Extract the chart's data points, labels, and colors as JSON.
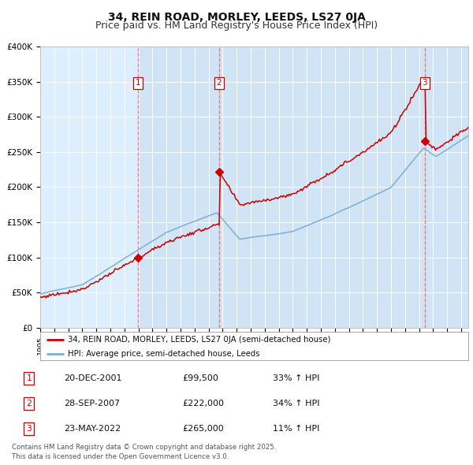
{
  "title": "34, REIN ROAD, MORLEY, LEEDS, LS27 0JA",
  "subtitle": "Price paid vs. HM Land Registry's House Price Index (HPI)",
  "ylim": [
    0,
    400000
  ],
  "yticks": [
    0,
    50000,
    100000,
    150000,
    200000,
    250000,
    300000,
    350000,
    400000
  ],
  "ytick_labels": [
    "£0",
    "£50K",
    "£100K",
    "£150K",
    "£200K",
    "£250K",
    "£300K",
    "£350K",
    "£400K"
  ],
  "xlim_start": 1995.0,
  "xlim_end": 2025.5,
  "hpi_color": "#7bafd4",
  "property_color": "#cc0000",
  "vline_color": "#ff6666",
  "bg_color": "#ddeeff",
  "grid_color": "#ffffff",
  "purchase_dates": [
    2001.97,
    2007.74,
    2022.39
  ],
  "purchase_prices": [
    99500,
    222000,
    265000
  ],
  "purchase_labels": [
    "1",
    "2",
    "3"
  ],
  "legend_property": "34, REIN ROAD, MORLEY, LEEDS, LS27 0JA (semi-detached house)",
  "legend_hpi": "HPI: Average price, semi-detached house, Leeds",
  "table_data": [
    [
      "1",
      "20-DEC-2001",
      "£99,500",
      "33% ↑ HPI"
    ],
    [
      "2",
      "28-SEP-2007",
      "£222,000",
      "34% ↑ HPI"
    ],
    [
      "3",
      "23-MAY-2022",
      "£265,000",
      "11% ↑ HPI"
    ]
  ],
  "footer": "Contains HM Land Registry data © Crown copyright and database right 2025.\nThis data is licensed under the Open Government Licence v3.0.",
  "title_fontsize": 10,
  "subtitle_fontsize": 9
}
